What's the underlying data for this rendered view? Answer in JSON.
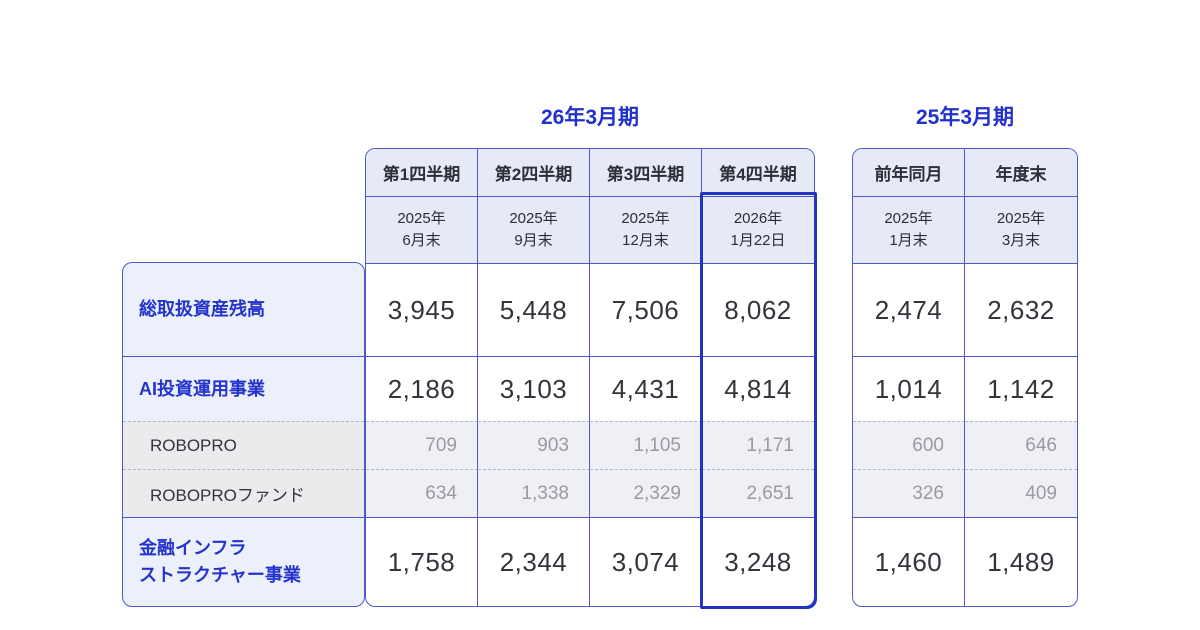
{
  "ui": {
    "fy2026_title": "26年3月期",
    "fy2025_title": "25年3月期",
    "quarter_headers": [
      "第1四半期",
      "第2四半期",
      "第3四半期",
      "第4四半期"
    ],
    "quarter_dates": [
      "2025年\n6月末",
      "2025年\n9月末",
      "2025年\n12月末",
      "2026年\n1月22日"
    ],
    "prior_headers": [
      "前年同月",
      "年度末"
    ],
    "prior_dates": [
      "2025年\n1月末",
      "2025年\n3月末"
    ],
    "row_labels": [
      "総取扱資産残高",
      "AI投資運用事業",
      "ROBOPRO",
      "ROBOPROファンド",
      "金融インフラ\nストラクチャー事業"
    ],
    "main_values": [
      [
        "3,945",
        "5,448",
        "7,506",
        "8,062"
      ],
      [
        "2,186",
        "3,103",
        "4,431",
        "4,814"
      ],
      [
        "709",
        "903",
        "1,105",
        "1,171"
      ],
      [
        "634",
        "1,338",
        "2,329",
        "2,651"
      ],
      [
        "1,758",
        "2,344",
        "3,074",
        "3,248"
      ]
    ],
    "prior_values": [
      [
        "2,474",
        "2,632"
      ],
      [
        "1,014",
        "1,142"
      ],
      [
        "600",
        "646"
      ],
      [
        "326",
        "409"
      ],
      [
        "1,460",
        "1,489"
      ]
    ]
  },
  "colors": {
    "accent_blue": "#2230cc",
    "label_blue": "#2433cb",
    "table_border": "#4f58c9",
    "highlight_border": "#2334c0",
    "header_bg": "#e6e9f6",
    "label_column_bg": "#ecf0fb",
    "sub_row_label_bg": "#ebebee",
    "sub_row_value_bg": "#eef0f6",
    "dashed_divider": "#b3b6c6",
    "value_text": "#33343c",
    "sub_value_text": "#9a9aa2"
  },
  "chart_data": {
    "type": "table",
    "title": "",
    "column_groups": [
      {
        "label": "26年3月期",
        "columns": [
          0,
          1,
          2,
          3
        ]
      },
      {
        "label": "25年3月期",
        "columns": [
          4,
          5
        ]
      }
    ],
    "columns": [
      "第1四半期 2025年6月末",
      "第2四半期 2025年9月末",
      "第3四半期 2025年12月末",
      "第4四半期 2026年1月22日",
      "前年同月 2025年1月末",
      "年度末 2025年3月末"
    ],
    "rows": [
      {
        "label": "総取扱資産残高",
        "level": "primary",
        "values": [
          3945,
          5448,
          7506,
          8062,
          2474,
          2632
        ]
      },
      {
        "label": "AI投資運用事業",
        "level": "primary",
        "values": [
          2186,
          3103,
          4431,
          4814,
          1014,
          1142
        ]
      },
      {
        "label": "ROBOPRO",
        "level": "sub",
        "values": [
          709,
          903,
          1105,
          1171,
          600,
          646
        ]
      },
      {
        "label": "ROBOPROファンド",
        "level": "sub",
        "values": [
          634,
          1338,
          2329,
          2651,
          326,
          409
        ]
      },
      {
        "label": "金融インフラストラクチャー事業",
        "level": "primary",
        "values": [
          1758,
          2344,
          3074,
          3248,
          1460,
          1489
        ]
      }
    ],
    "highlighted_column": "第4四半期 2026年1月22日",
    "legend_position": "none",
    "grid": "table-borders"
  }
}
